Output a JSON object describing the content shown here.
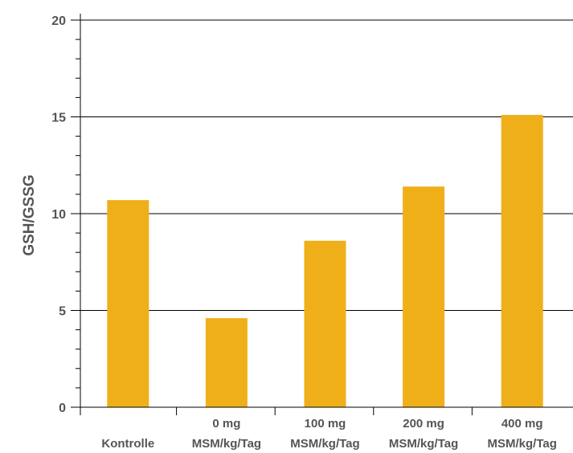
{
  "chart_data": {
    "type": "bar",
    "categories": [
      [
        "",
        "Kontrolle"
      ],
      [
        "0 mg",
        "MSM/kg/Tag"
      ],
      [
        "100 mg",
        "MSM/kg/Tag"
      ],
      [
        "200 mg",
        "MSM/kg/Tag"
      ],
      [
        "400 mg",
        "MSM/kg/Tag"
      ]
    ],
    "values": [
      10.7,
      4.6,
      8.6,
      11.4,
      15.1
    ],
    "ylabel": "GSH/GSSG",
    "xlabel": "",
    "ylim": [
      0,
      20
    ],
    "yticks": [
      "0",
      "5",
      "10",
      "15",
      "20"
    ],
    "grid": true,
    "colors": {
      "bar": "#EFAF19",
      "grid": "#000000",
      "text": "#555555"
    }
  }
}
